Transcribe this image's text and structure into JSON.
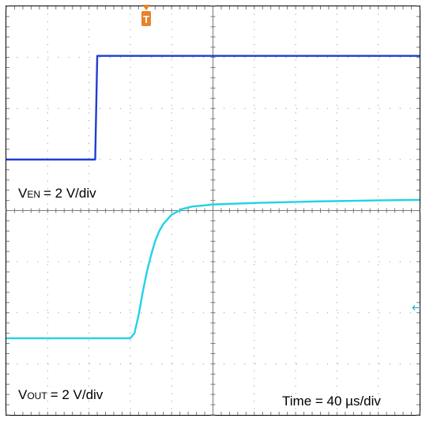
{
  "chart_data": {
    "type": "line",
    "title": "",
    "xlabel": "",
    "ylabel": "",
    "grid": true,
    "grid_divisions": {
      "x": 10,
      "y": 8
    },
    "time_per_div_us": 40,
    "xlim_us": [
      -40,
      360
    ],
    "trigger_marker": "T",
    "channels": [
      {
        "name": "VEN",
        "color": "#1f3fd0",
        "scale_label_main": "V",
        "scale_label_sub": "EN",
        "scale_label_rest": "= 2 V/div",
        "baseline_div": 1.0,
        "x_us": [
          -40,
          46,
          48,
          360
        ],
        "y_div": [
          0,
          0,
          2.03,
          2.03
        ]
      },
      {
        "name": "VOUT",
        "color": "#22d2e6",
        "scale_label_main": "V",
        "scale_label_sub": "OUT",
        "scale_label_rest": "= 2 V/div",
        "baseline_div": -2.5,
        "x_us": [
          -40,
          80,
          84,
          88,
          92,
          96,
          100,
          104,
          108,
          112,
          120,
          130,
          140,
          160,
          200,
          260,
          320,
          360
        ],
        "y_div": [
          0,
          0,
          0.1,
          0.45,
          0.9,
          1.3,
          1.62,
          1.9,
          2.1,
          2.24,
          2.42,
          2.53,
          2.58,
          2.62,
          2.65,
          2.68,
          2.7,
          2.71
        ]
      }
    ],
    "time_label": "Time = 40 µs/div",
    "channel2_marker": "←"
  }
}
